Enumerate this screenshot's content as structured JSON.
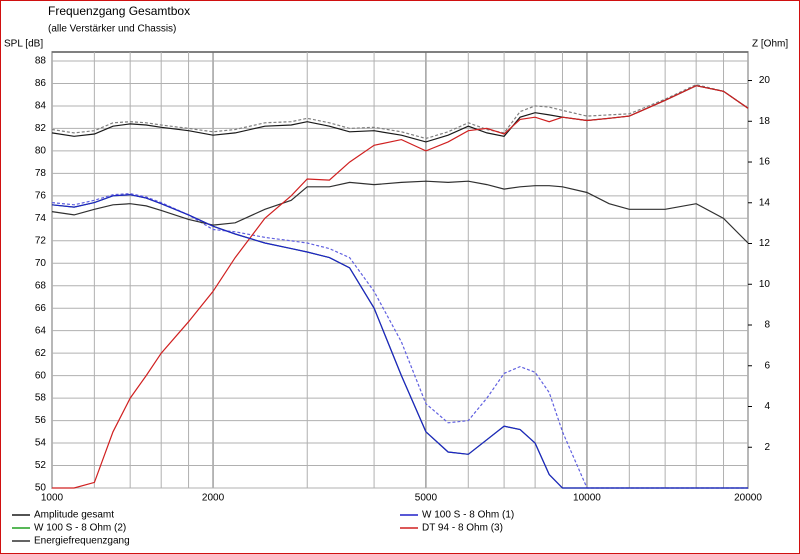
{
  "chart_data": {
    "type": "line",
    "title": "Frequenzgang Gesamtbox",
    "subtitle": "(alle Verstärker und Chassis)",
    "y_label": "SPL [dB]",
    "y2_label": "Z [Ohm]",
    "log_x": true,
    "grid": true,
    "legend": "bottom",
    "x": [
      1000,
      1100,
      1200,
      1300,
      1400,
      1500,
      1600,
      1800,
      2000,
      2200,
      2500,
      2800,
      3000,
      3300,
      3600,
      4000,
      4500,
      5000,
      5500,
      6000,
      6500,
      7000,
      7500,
      8000,
      8500,
      9000,
      10000,
      11000,
      12000,
      14000,
      16000,
      18000,
      20000
    ],
    "xlim": [
      1000,
      20000
    ],
    "xticks": [
      1000,
      2000,
      5000,
      10000,
      20000
    ],
    "xgrid": [
      1200,
      1400,
      1600,
      1800,
      3000,
      4000,
      6000,
      7000,
      8000,
      9000,
      12000,
      14000,
      16000,
      18000
    ],
    "ylim": [
      50,
      88.8
    ],
    "yticks": [
      50,
      52,
      54,
      56,
      58,
      60,
      62,
      64,
      66,
      68,
      70,
      72,
      74,
      76,
      78,
      80,
      82,
      84,
      86,
      88
    ],
    "y2lim": [
      0,
      21.4
    ],
    "y2ticks": [
      2,
      4,
      6,
      8,
      10,
      12,
      14,
      16,
      18,
      20
    ],
    "series": [
      {
        "name": "Amplitude gesamt",
        "color": "#1a1a1a",
        "values": [
          81.6,
          81.3,
          81.5,
          82.2,
          82.4,
          82.3,
          82.1,
          81.8,
          81.4,
          81.6,
          82.2,
          82.3,
          82.6,
          82.2,
          81.7,
          81.8,
          81.4,
          80.8,
          81.4,
          82.2,
          81.6,
          81.3,
          83.0,
          83.4,
          83.2,
          83.0,
          82.7,
          82.9,
          83.1,
          84.5,
          85.8,
          85.3,
          83.8
        ]
      },
      {
        "name": "W 100 S - 8 Ohm (1)",
        "color": "#2020c8",
        "values": [
          75.2,
          75.0,
          75.4,
          76.0,
          76.1,
          75.8,
          75.3,
          74.3,
          73.3,
          72.6,
          71.8,
          71.3,
          71.0,
          70.5,
          69.6,
          66.0,
          60.0,
          55.0,
          53.2,
          53.0,
          54.3,
          55.5,
          55.2,
          54.0,
          51.2,
          50.0,
          50,
          50,
          50,
          50,
          50,
          50,
          50
        ]
      },
      {
        "name": "W 100 S - 8 Ohm (2)",
        "color": "#20a020",
        "values": [
          75.2,
          75.0,
          75.4,
          76.0,
          76.1,
          75.8,
          75.3,
          74.3,
          73.3,
          72.6,
          71.8,
          71.3,
          71.0,
          70.5,
          69.6,
          66.0,
          60.0,
          55.0,
          53.2,
          53.0,
          54.3,
          55.5,
          55.2,
          54.0,
          51.2,
          50.0,
          50,
          50,
          50,
          50,
          50,
          50,
          50
        ]
      },
      {
        "name": "DT 94 - 8 Ohm (3)",
        "color": "#d02020",
        "values": [
          50,
          50,
          50.5,
          55,
          58,
          60,
          62,
          64.8,
          67.5,
          70.5,
          74,
          76,
          77.5,
          77.4,
          79,
          80.5,
          81.0,
          80.0,
          80.8,
          81.8,
          82.0,
          81.5,
          82.8,
          83.0,
          82.6,
          83.0,
          82.7,
          82.9,
          83.1,
          84.5,
          85.8,
          85.3,
          83.8
        ]
      },
      {
        "name": "Energiefrequenzgang",
        "color": "#303030",
        "values": [
          74.6,
          74.3,
          74.8,
          75.2,
          75.3,
          75.1,
          74.7,
          73.9,
          73.4,
          73.6,
          74.8,
          75.6,
          76.8,
          76.8,
          77.2,
          77.0,
          77.2,
          77.3,
          77.2,
          77.3,
          77.0,
          76.6,
          76.8,
          76.9,
          76.9,
          76.8,
          76.3,
          75.3,
          74.8,
          74.8,
          75.3,
          74.0,
          71.8
        ]
      },
      {
        "color": "#808080",
        "dash": true,
        "values": [
          81.9,
          81.6,
          81.8,
          82.5,
          82.6,
          82.5,
          82.3,
          82.0,
          81.7,
          81.9,
          82.5,
          82.6,
          82.9,
          82.5,
          82.0,
          82.1,
          81.7,
          81.1,
          81.7,
          82.5,
          81.9,
          81.6,
          83.5,
          84.0,
          83.9,
          83.6,
          83.1,
          83.2,
          83.3,
          84.6,
          85.9,
          85.3,
          83.8
        ]
      },
      {
        "color": "#6060e0",
        "dash": true,
        "values": [
          75.4,
          75.2,
          75.6,
          76.1,
          76.2,
          75.9,
          75.4,
          74.3,
          73.0,
          72.8,
          72.3,
          72.0,
          71.8,
          71.3,
          70.5,
          67.5,
          63.0,
          57.5,
          55.8,
          56.0,
          58.0,
          60.2,
          60.8,
          60.3,
          58.5,
          55.0,
          50.0,
          50,
          50,
          50,
          50,
          50,
          50
        ]
      }
    ]
  }
}
